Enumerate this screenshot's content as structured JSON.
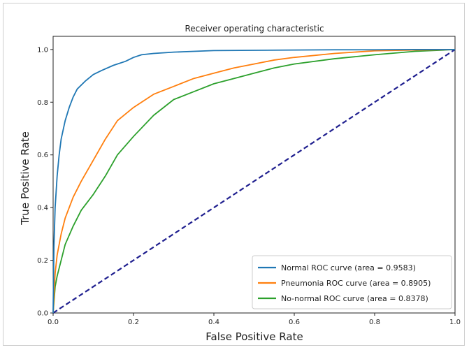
{
  "chart_data": {
    "type": "line",
    "title": "Receiver operating characteristic",
    "xlabel": "False Positive Rate",
    "ylabel": "True Positive Rate",
    "xlim": [
      0.0,
      1.0
    ],
    "ylim": [
      0.0,
      1.05
    ],
    "xticks": [
      0.0,
      0.2,
      0.4,
      0.6,
      0.8,
      1.0
    ],
    "yticks": [
      0.0,
      0.2,
      0.4,
      0.6,
      0.8,
      1.0
    ],
    "xtick_labels": [
      "0.0",
      "0.2",
      "0.4",
      "0.6",
      "0.8",
      "1.0"
    ],
    "ytick_labels": [
      "0.0",
      "0.2",
      "0.4",
      "0.6",
      "0.8",
      "1.0"
    ],
    "legend_position": "lower-right",
    "grid": false,
    "series": [
      {
        "name": "Normal ROC curve (area = 0.9583)",
        "color": "#1f77b4",
        "x": [
          0,
          0.002,
          0.005,
          0.01,
          0.015,
          0.02,
          0.03,
          0.04,
          0.05,
          0.06,
          0.08,
          0.1,
          0.12,
          0.15,
          0.18,
          0.2,
          0.22,
          0.25,
          0.3,
          0.35,
          0.4,
          0.5,
          0.6,
          0.7,
          0.8,
          0.9,
          1.0
        ],
        "y": [
          0,
          0.25,
          0.4,
          0.52,
          0.6,
          0.66,
          0.73,
          0.78,
          0.82,
          0.85,
          0.88,
          0.905,
          0.92,
          0.94,
          0.955,
          0.97,
          0.98,
          0.985,
          0.99,
          0.993,
          0.996,
          0.997,
          0.998,
          0.999,
          0.999,
          1.0,
          1.0
        ]
      },
      {
        "name": "Pneumonia ROC curve (area = 0.8905)",
        "color": "#ff7f0e",
        "x": [
          0,
          0.005,
          0.01,
          0.02,
          0.03,
          0.05,
          0.07,
          0.1,
          0.13,
          0.16,
          0.2,
          0.25,
          0.3,
          0.35,
          0.4,
          0.45,
          0.5,
          0.55,
          0.6,
          0.7,
          0.8,
          0.9,
          1.0
        ],
        "y": [
          0,
          0.15,
          0.22,
          0.3,
          0.36,
          0.44,
          0.5,
          0.58,
          0.66,
          0.73,
          0.78,
          0.83,
          0.86,
          0.89,
          0.91,
          0.93,
          0.945,
          0.96,
          0.97,
          0.985,
          0.995,
          0.998,
          1.0
        ]
      },
      {
        "name": "No-normal ROC curve (area = 0.8378)",
        "color": "#2ca02c",
        "x": [
          0,
          0.005,
          0.01,
          0.02,
          0.03,
          0.05,
          0.07,
          0.1,
          0.13,
          0.16,
          0.2,
          0.25,
          0.3,
          0.35,
          0.4,
          0.45,
          0.5,
          0.55,
          0.6,
          0.7,
          0.8,
          0.9,
          1.0
        ],
        "y": [
          0,
          0.1,
          0.14,
          0.2,
          0.26,
          0.33,
          0.39,
          0.45,
          0.52,
          0.6,
          0.67,
          0.75,
          0.81,
          0.84,
          0.87,
          0.89,
          0.91,
          0.93,
          0.945,
          0.965,
          0.98,
          0.993,
          1.0
        ]
      }
    ],
    "reference_line": {
      "x": [
        0,
        1
      ],
      "y": [
        0,
        1
      ],
      "color": "#1f1f8f",
      "style": "dashed"
    }
  }
}
